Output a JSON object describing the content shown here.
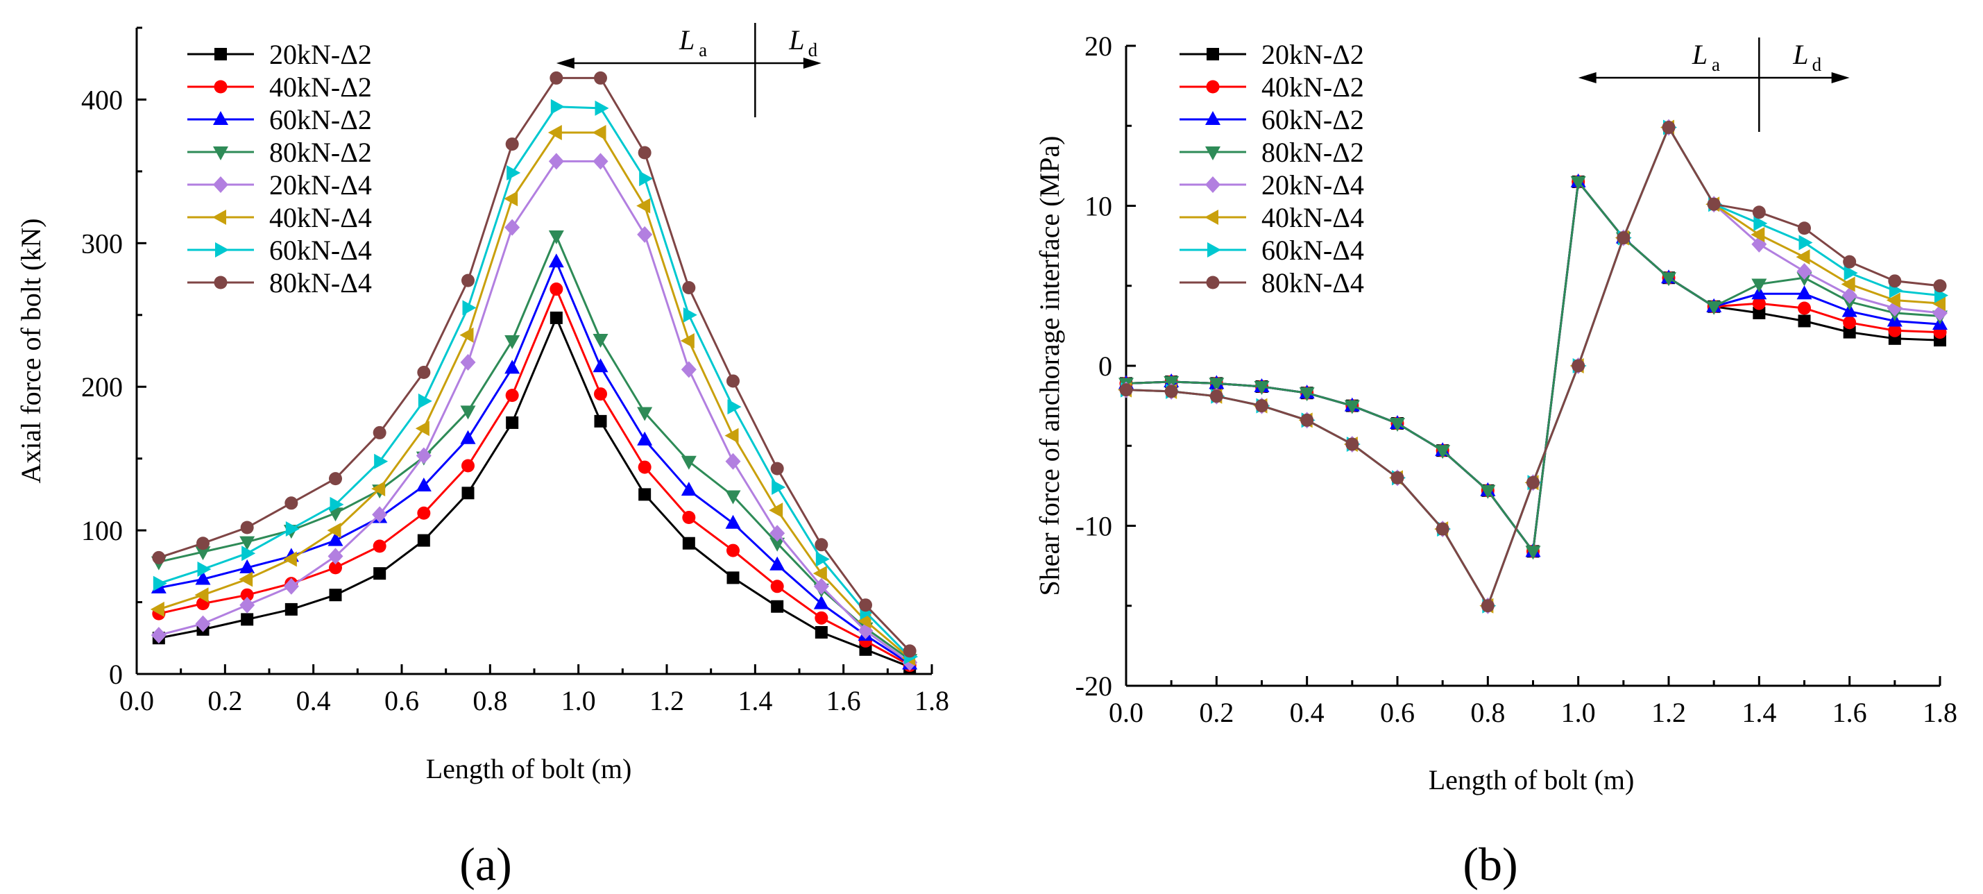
{
  "chart_data": [
    {
      "panel_label": "(a)",
      "type": "line",
      "xlabel": "Length of bolt (m)",
      "ylabel": "Axial force of bolt (kN)",
      "xlim": [
        0.0,
        1.8
      ],
      "ylim": [
        0,
        450
      ],
      "xticks": [
        "0.0",
        "0.2",
        "0.4",
        "0.6",
        "0.8",
        "1.0",
        "1.2",
        "1.4",
        "1.6",
        "1.8"
      ],
      "yticks": [
        "0",
        "100",
        "200",
        "300",
        "400"
      ],
      "grid": false,
      "legend_position": "top-left",
      "annotation": {
        "left": "L",
        "left_sub": "a",
        "right": "L",
        "right_sub": "d",
        "divider_x": 1.4,
        "arrow_from": 0.95,
        "arrow_to": 1.55
      },
      "x": [
        0.05,
        0.15,
        0.25,
        0.35,
        0.45,
        0.55,
        0.65,
        0.75,
        0.85,
        0.95,
        1.05,
        1.15,
        1.25,
        1.35,
        1.45,
        1.55,
        1.65,
        1.75
      ],
      "series": [
        {
          "name": "20kN-Δ2",
          "color": "#000000",
          "marker": "square",
          "values": [
            25,
            31,
            38,
            45,
            55,
            70,
            93,
            126,
            175,
            248,
            176,
            125,
            91,
            67,
            47,
            29,
            17,
            5
          ]
        },
        {
          "name": "40kN-Δ2",
          "color": "#ff0000",
          "marker": "circle",
          "values": [
            42,
            49,
            55,
            63,
            74,
            89,
            112,
            145,
            194,
            268,
            195,
            144,
            109,
            86,
            61,
            39,
            23,
            6
          ]
        },
        {
          "name": "60kN-Δ2",
          "color": "#0000ff",
          "marker": "triangle-up",
          "values": [
            60,
            66,
            74,
            82,
            93,
            109,
            131,
            164,
            213,
            287,
            214,
            163,
            128,
            105,
            76,
            49,
            27,
            7
          ]
        },
        {
          "name": "80kN-Δ2",
          "color": "#2e8b57",
          "marker": "triangle-down",
          "values": [
            78,
            85,
            92,
            100,
            112,
            128,
            151,
            183,
            232,
            305,
            233,
            182,
            148,
            124,
            91,
            59,
            32,
            10
          ]
        },
        {
          "name": "20kN-Δ4",
          "color": "#b27fe0",
          "marker": "diamond",
          "values": [
            27,
            35,
            48,
            61,
            82,
            111,
            152,
            217,
            311,
            357,
            357,
            306,
            212,
            148,
            98,
            61,
            30,
            8
          ]
        },
        {
          "name": "40kN-Δ4",
          "color": "#c9a00c",
          "marker": "triangle-left",
          "values": [
            45,
            55,
            66,
            80,
            100,
            129,
            171,
            236,
            331,
            377,
            377,
            326,
            232,
            166,
            114,
            70,
            37,
            11
          ]
        },
        {
          "name": "60kN-Δ4",
          "color": "#00c8d0",
          "marker": "triangle-right",
          "values": [
            63,
            73,
            84,
            101,
            118,
            148,
            190,
            255,
            349,
            395,
            394,
            345,
            250,
            186,
            130,
            80,
            43,
            12
          ]
        },
        {
          "name": "80kN-Δ4",
          "color": "#7f4545",
          "marker": "circle",
          "values": [
            81,
            91,
            102,
            119,
            136,
            168,
            210,
            274,
            369,
            415,
            415,
            363,
            269,
            204,
            143,
            90,
            48,
            16
          ]
        }
      ]
    },
    {
      "panel_label": "(b)",
      "type": "line",
      "xlabel": "Length of bolt (m)",
      "ylabel": "Shear force of anchorage interface (MPa)",
      "xlim": [
        0.0,
        1.8
      ],
      "ylim": [
        -20,
        20
      ],
      "xticks": [
        "0.0",
        "0.2",
        "0.4",
        "0.6",
        "0.8",
        "1.0",
        "1.2",
        "1.4",
        "1.6",
        "1.8"
      ],
      "yticks": [
        "-20",
        "-10",
        "0",
        "10",
        "20"
      ],
      "grid": false,
      "legend_position": "top-left",
      "annotation": {
        "left": "L",
        "left_sub": "a",
        "right": "L",
        "right_sub": "d",
        "divider_x": 1.4,
        "arrow_from": 1.0,
        "arrow_to": 1.6
      },
      "x": [
        0.0,
        0.1,
        0.2,
        0.3,
        0.4,
        0.5,
        0.6,
        0.7,
        0.8,
        0.9,
        1.0,
        1.1,
        1.2,
        1.3,
        1.4,
        1.5,
        1.6,
        1.7,
        1.8
      ],
      "series": [
        {
          "name": "20kN-Δ2",
          "color": "#000000",
          "marker": "square",
          "values": [
            -1.1,
            -1.0,
            -1.1,
            -1.3,
            -1.7,
            -2.5,
            -3.6,
            -5.3,
            -7.8,
            -11.6,
            11.5,
            8.0,
            5.5,
            3.7,
            3.3,
            2.8,
            2.1,
            1.7,
            1.6
          ]
        },
        {
          "name": "40kN-Δ2",
          "color": "#ff0000",
          "marker": "circle",
          "values": [
            -1.1,
            -1.0,
            -1.1,
            -1.3,
            -1.7,
            -2.5,
            -3.6,
            -5.3,
            -7.8,
            -11.6,
            11.5,
            8.0,
            5.5,
            3.7,
            3.9,
            3.6,
            2.7,
            2.2,
            2.1
          ]
        },
        {
          "name": "60kN-Δ2",
          "color": "#0000ff",
          "marker": "triangle-up",
          "values": [
            -1.1,
            -1.0,
            -1.1,
            -1.3,
            -1.7,
            -2.5,
            -3.6,
            -5.3,
            -7.8,
            -11.6,
            11.5,
            8.0,
            5.5,
            3.7,
            4.5,
            4.5,
            3.4,
            2.8,
            2.6
          ]
        },
        {
          "name": "80kN-Δ2",
          "color": "#2e8b57",
          "marker": "triangle-down",
          "values": [
            -1.1,
            -1.0,
            -1.1,
            -1.3,
            -1.7,
            -2.5,
            -3.6,
            -5.3,
            -7.8,
            -11.6,
            11.5,
            8.0,
            5.5,
            3.7,
            5.1,
            5.5,
            4.0,
            3.3,
            3.1
          ]
        },
        {
          "name": "20kN-Δ4",
          "color": "#b27fe0",
          "marker": "diamond",
          "values": [
            -1.5,
            -1.6,
            -1.9,
            -2.5,
            -3.4,
            -4.9,
            -7.0,
            -10.2,
            -15.0,
            -7.3,
            0.0,
            8.0,
            14.9,
            10.1,
            7.6,
            5.9,
            4.4,
            3.6,
            3.3
          ]
        },
        {
          "name": "40kN-Δ4",
          "color": "#c9a00c",
          "marker": "triangle-left",
          "values": [
            -1.5,
            -1.6,
            -1.9,
            -2.5,
            -3.4,
            -4.9,
            -7.0,
            -10.2,
            -15.0,
            -7.3,
            0.0,
            8.0,
            14.9,
            10.1,
            8.2,
            6.8,
            5.1,
            4.1,
            3.9
          ]
        },
        {
          "name": "60kN-Δ4",
          "color": "#00c8d0",
          "marker": "triangle-right",
          "values": [
            -1.5,
            -1.6,
            -1.9,
            -2.5,
            -3.4,
            -4.9,
            -7.0,
            -10.2,
            -15.0,
            -7.3,
            0.0,
            8.0,
            14.9,
            10.1,
            8.9,
            7.7,
            5.8,
            4.7,
            4.4
          ]
        },
        {
          "name": "80kN-Δ4",
          "color": "#7f4545",
          "marker": "circle",
          "values": [
            -1.5,
            -1.6,
            -1.9,
            -2.5,
            -3.4,
            -4.9,
            -7.0,
            -10.2,
            -15.0,
            -7.3,
            0.0,
            8.0,
            14.9,
            10.1,
            9.6,
            8.6,
            6.5,
            5.3,
            5.0
          ]
        }
      ]
    }
  ]
}
